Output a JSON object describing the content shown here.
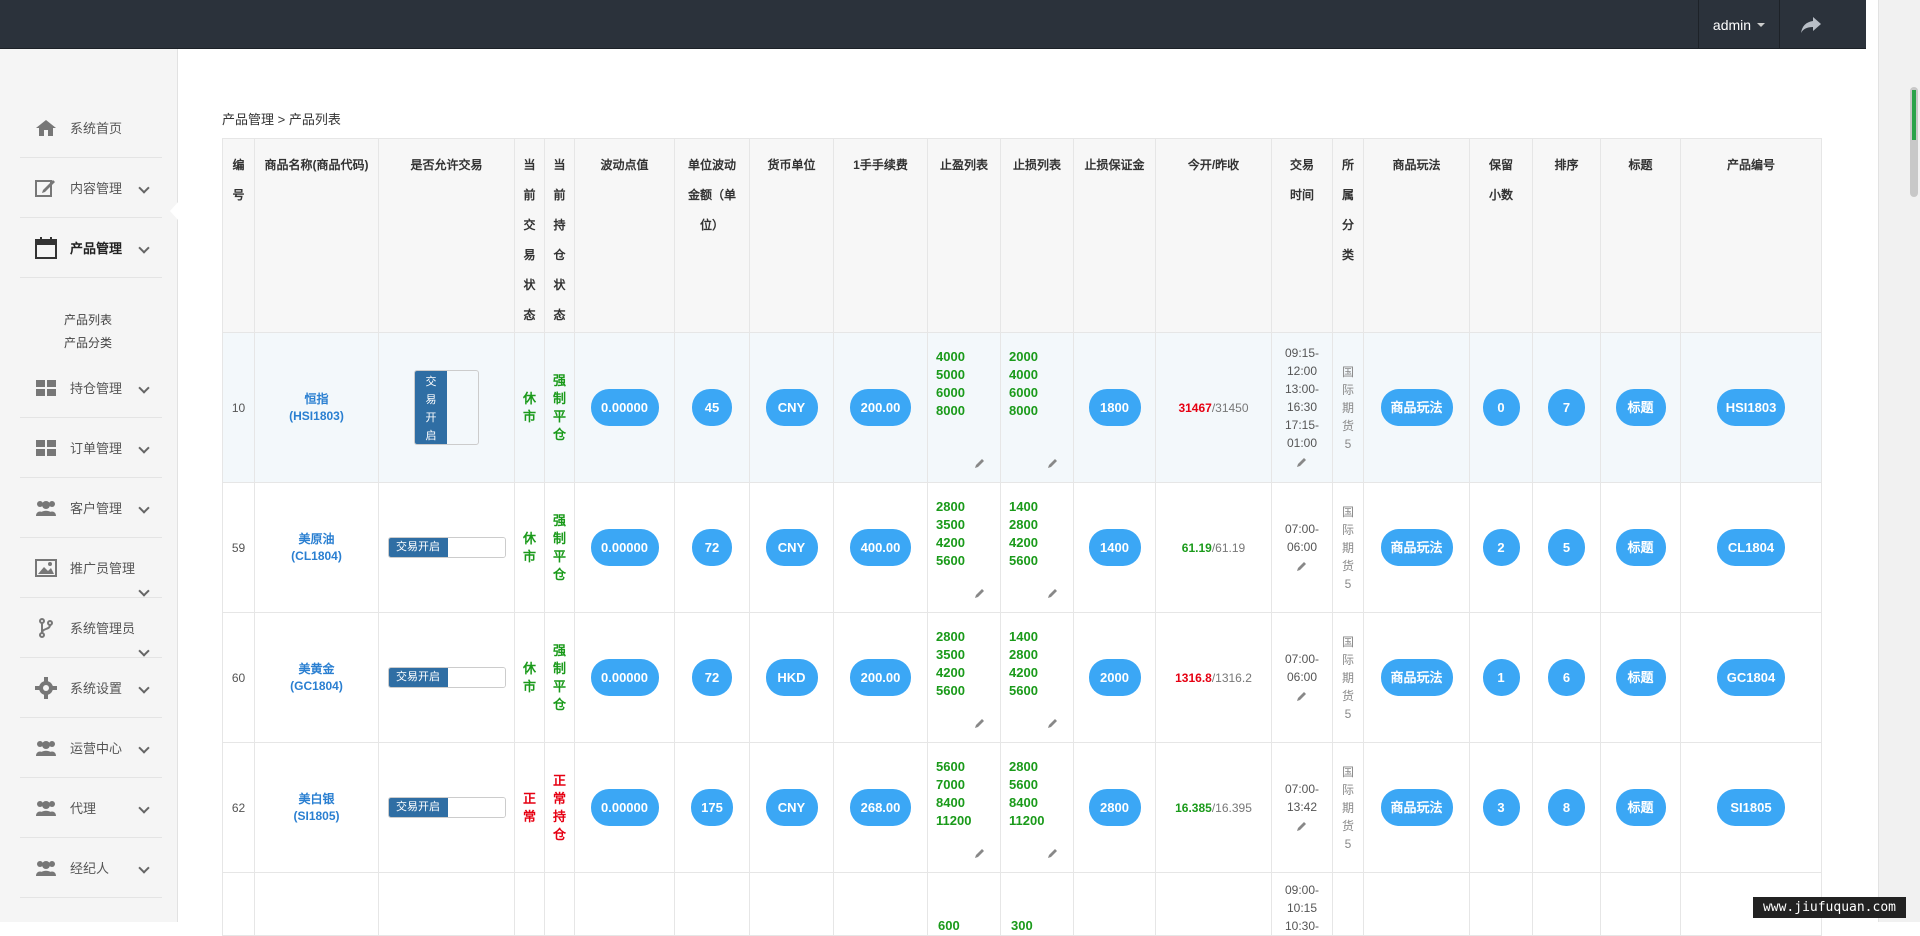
{
  "header": {
    "user": "admin"
  },
  "sidebar": {
    "items": [
      {
        "label": "系统首页",
        "icon": "home-icon"
      },
      {
        "label": "内容管理",
        "icon": "edit-icon"
      },
      {
        "label": "产品管理",
        "icon": "calendar-icon"
      },
      {
        "label": "持仓管理",
        "icon": "grid-icon"
      },
      {
        "label": "订单管理",
        "icon": "grid-icon"
      },
      {
        "label": "客户管理",
        "icon": "users-icon"
      },
      {
        "label": "推广员管理",
        "icon": "image-icon"
      },
      {
        "label": "系统管理员",
        "icon": "branch-icon"
      },
      {
        "label": "系统设置",
        "icon": "gear-icon"
      },
      {
        "label": "运营中心",
        "icon": "users-icon"
      },
      {
        "label": "代理",
        "icon": "users-icon"
      },
      {
        "label": "经纪人",
        "icon": "users-icon"
      }
    ],
    "sub_items": [
      "产品列表",
      "产品分类"
    ]
  },
  "breadcrumb": "产品管理 > 产品列表",
  "table": {
    "headers": [
      "编号",
      "商品名称(商品代码)",
      "是否允许交易",
      "当前交易状态",
      "当前持仓状态",
      "波动点值",
      "单位波动金额（单位）",
      "货币单位",
      "1手手续费",
      "止盈列表",
      "止损列表",
      "止损保证金",
      "今开/昨收",
      "交易时间",
      "所属分类",
      "商品玩法",
      "保留小数",
      "排序",
      "标题",
      "产品编号"
    ],
    "rows": [
      {
        "id": "10",
        "name": "恒指",
        "code": "(HSI1803)",
        "trade": "交易开启",
        "status": "休市",
        "hold": "强制平仓",
        "point": "0.00000",
        "unit": "45",
        "currency": "CNY",
        "fee": "200.00",
        "tp": [
          "4000",
          "5000",
          "6000",
          "8000"
        ],
        "sl": [
          "2000",
          "4000",
          "6000",
          "8000"
        ],
        "margin": "1800",
        "open": "31467",
        "close": "/31450",
        "time": [
          "09:15-",
          "12:00",
          "13:00-",
          "16:30",
          "17:15-",
          "01:00"
        ],
        "cat": "国际期货5",
        "play": "商品玩法",
        "dec": "0",
        "sort": "7",
        "title": "标题",
        "pcode": "HSI1803"
      },
      {
        "id": "59",
        "name": "美原油",
        "code": "(CL1804)",
        "trade": "交易开启",
        "status": "休市",
        "hold": "强制平仓",
        "point": "0.00000",
        "unit": "72",
        "currency": "CNY",
        "fee": "400.00",
        "tp": [
          "2800",
          "3500",
          "4200",
          "5600"
        ],
        "sl": [
          "1400",
          "2800",
          "4200",
          "5600"
        ],
        "margin": "1400",
        "open": "61.19",
        "close": "/61.19",
        "time": [
          "07:00-",
          "06:00"
        ],
        "cat": "国际期货5",
        "play": "商品玩法",
        "dec": "2",
        "sort": "5",
        "title": "标题",
        "pcode": "CL1804"
      },
      {
        "id": "60",
        "name": "美黄金",
        "code": "(GC1804)",
        "trade": "交易开启",
        "status": "休市",
        "hold": "强制平仓",
        "point": "0.00000",
        "unit": "72",
        "currency": "HKD",
        "fee": "200.00",
        "tp": [
          "2800",
          "3500",
          "4200",
          "5600"
        ],
        "sl": [
          "1400",
          "2800",
          "4200",
          "5600"
        ],
        "margin": "2000",
        "open": "1316.8",
        "close": "/1316.2",
        "time": [
          "07:00-",
          "06:00"
        ],
        "cat": "国际期货5",
        "play": "商品玩法",
        "dec": "1",
        "sort": "6",
        "title": "标题",
        "pcode": "GC1804"
      },
      {
        "id": "62",
        "name": "美白银",
        "code": "(SI1805)",
        "trade": "交易开启",
        "status": "正常",
        "hold": "正常持仓",
        "point": "0.00000",
        "unit": "175",
        "currency": "CNY",
        "fee": "268.00",
        "tp": [
          "5600",
          "7000",
          "8400",
          "11200"
        ],
        "sl": [
          "2800",
          "5600",
          "8400",
          "11200"
        ],
        "margin": "2800",
        "open": "16.385",
        "close": "/16.395",
        "time": [
          "07:00-",
          "13:42"
        ],
        "cat": "国际期货5",
        "play": "商品玩法",
        "dec": "3",
        "sort": "8",
        "title": "标题",
        "pcode": "SI1805"
      },
      {
        "tp": [
          "600"
        ],
        "sl": [
          "300"
        ],
        "time": [
          "09:00-",
          "10:15",
          "10:30-"
        ]
      }
    ]
  },
  "watermark": "www.jiufuquan.com",
  "colors": {
    "accent": "#3ba7f5",
    "topbar": "#2b323b",
    "green": "#1a9a1a",
    "red": "#e60012"
  }
}
